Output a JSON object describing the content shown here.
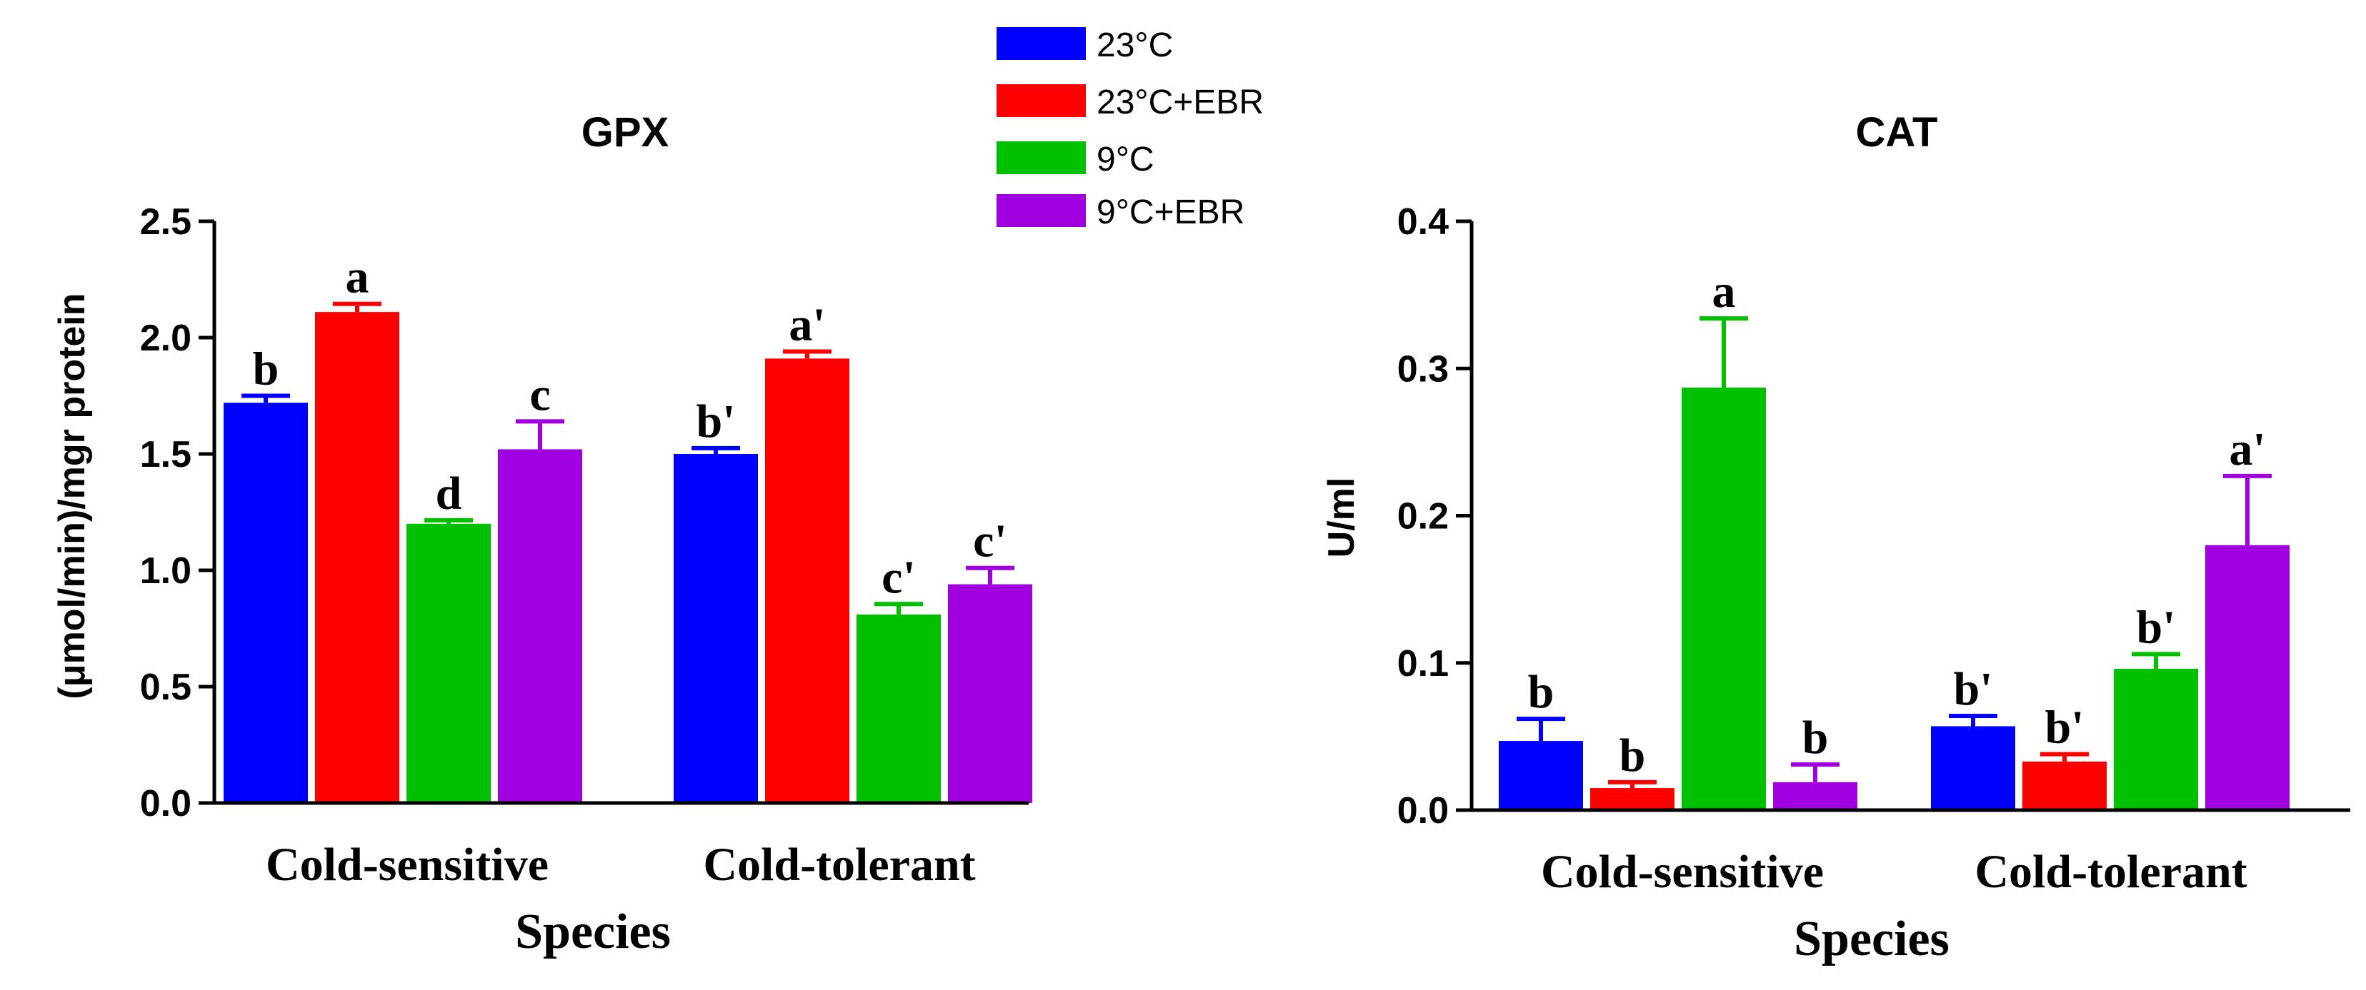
{
  "legend": [
    {
      "label": "23°C",
      "color": "#0000ff"
    },
    {
      "label": "23°C+EBR",
      "color": "#ff0000"
    },
    {
      "label": "9°C",
      "color": "#00c000"
    },
    {
      "label": "9°C+EBR",
      "color": "#a000e0"
    }
  ],
  "chart_data": [
    {
      "type": "bar",
      "title": "GPX",
      "xlabel": "Species",
      "ylabel": "(μmol/min)/mgr protein",
      "ylim": [
        0,
        2.5
      ],
      "yticks": [
        "0.0",
        "0.5",
        "1.0",
        "1.5",
        "2.0",
        "2.5"
      ],
      "categories": [
        "Cold-sensitive",
        "Cold-tolerant"
      ],
      "series": [
        {
          "name": "23°C",
          "values": [
            1.72,
            1.5
          ],
          "errors": [
            0.03,
            0.025
          ],
          "labels": [
            "b",
            "b'"
          ]
        },
        {
          "name": "23°C+EBR",
          "values": [
            2.11,
            1.91
          ],
          "errors": [
            0.035,
            0.03
          ],
          "labels": [
            "a",
            "a'"
          ]
        },
        {
          "name": "9°C",
          "values": [
            1.2,
            0.81
          ],
          "errors": [
            0.015,
            0.045
          ],
          "labels": [
            "d",
            "c'"
          ]
        },
        {
          "name": "9°C+EBR",
          "values": [
            1.52,
            0.94
          ],
          "errors": [
            0.12,
            0.07
          ],
          "labels": [
            "c",
            "c'"
          ]
        }
      ]
    },
    {
      "type": "bar",
      "title": "CAT",
      "xlabel": "Species",
      "ylabel": "U/ml",
      "ylim": [
        0,
        0.4
      ],
      "yticks": [
        "0.0",
        "0.1",
        "0.2",
        "0.3",
        "0.4"
      ],
      "categories": [
        "Cold-sensitive",
        "Cold-tolerant"
      ],
      "series": [
        {
          "name": "23°C",
          "values": [
            0.047,
            0.057
          ],
          "errors": [
            0.015,
            0.007
          ],
          "labels": [
            "b",
            "b'"
          ]
        },
        {
          "name": "23°C+EBR",
          "values": [
            0.015,
            0.033
          ],
          "errors": [
            0.004,
            0.005
          ],
          "labels": [
            "b",
            "b'"
          ]
        },
        {
          "name": "9°C",
          "values": [
            0.287,
            0.096
          ],
          "errors": [
            0.047,
            0.01
          ],
          "labels": [
            "a",
            "b'"
          ]
        },
        {
          "name": "9°C+EBR",
          "values": [
            0.019,
            0.18
          ],
          "errors": [
            0.012,
            0.047
          ],
          "labels": [
            "b",
            "a'"
          ]
        }
      ]
    }
  ]
}
